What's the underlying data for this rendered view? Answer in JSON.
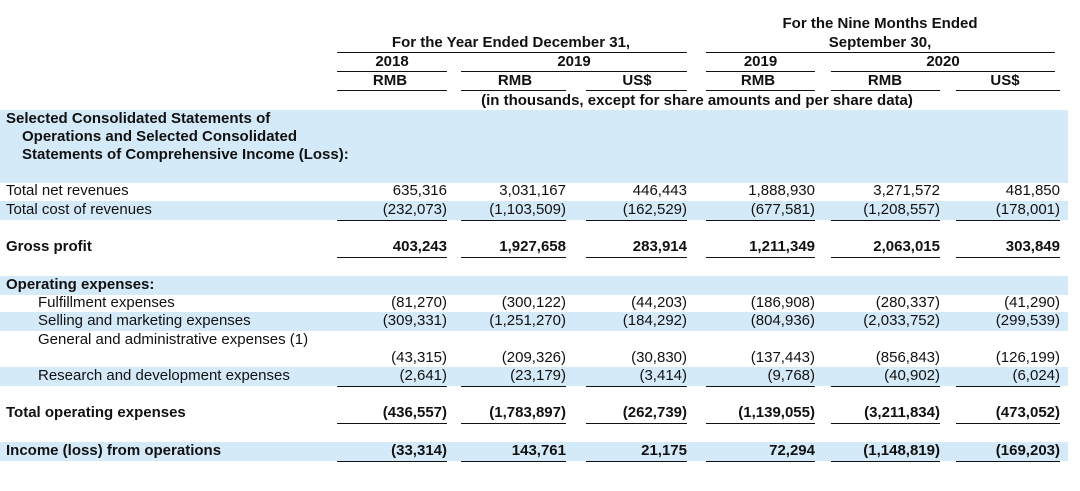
{
  "header": {
    "group1": "For the Year Ended December 31,",
    "group2_line1": "For the Nine Months Ended",
    "group2_line2": "September 30,",
    "years": [
      "2018",
      "2019",
      "2019",
      "2020"
    ],
    "currencies": [
      "RMB",
      "RMB",
      "US$",
      "RMB",
      "RMB",
      "US$"
    ],
    "note": "(in thousands, except for share amounts and per share data)"
  },
  "table": {
    "rows": [
      {
        "label": "Selected Consolidated Statements of Operations and Selected Consolidated Statements of Comprehensive Income (Loss):"
      },
      {
        "label": "Total net revenues",
        "values": [
          "635,316",
          "3,031,167",
          "446,443",
          "1,888,930",
          "3,271,572",
          "481,850"
        ]
      },
      {
        "label": "Total cost of revenues",
        "values": [
          "(232,073)",
          "(1,103,509)",
          "(162,529)",
          "(677,581)",
          "(1,208,557)",
          "(178,001)"
        ]
      },
      {
        "label": "Gross profit",
        "values": [
          "403,243",
          "1,927,658",
          "283,914",
          "1,211,349",
          "2,063,015",
          "303,849"
        ]
      },
      {
        "label": "Operating expenses:"
      },
      {
        "label": "Fulfillment expenses",
        "values": [
          "(81,270)",
          "(300,122)",
          "(44,203)",
          "(186,908)",
          "(280,337)",
          "(41,290)"
        ]
      },
      {
        "label": "Selling and marketing expenses",
        "values": [
          "(309,331)",
          "(1,251,270)",
          "(184,292)",
          "(804,936)",
          "(2,033,752)",
          "(299,539)"
        ]
      },
      {
        "label": "General and administrative expenses (1)",
        "values": [
          "(43,315)",
          "(209,326)",
          "(30,830)",
          "(137,443)",
          "(856,843)",
          "(126,199)"
        ]
      },
      {
        "label": "Research and development expenses",
        "values": [
          "(2,641)",
          "(23,179)",
          "(3,414)",
          "(9,768)",
          "(40,902)",
          "(6,024)"
        ]
      },
      {
        "label": "Total operating expenses",
        "values": [
          "(436,557)",
          "(1,783,897)",
          "(262,739)",
          "(1,139,055)",
          "(3,211,834)",
          "(473,052)"
        ]
      },
      {
        "label": "Income (loss) from operations",
        "values": [
          "(33,314)",
          "143,761",
          "21,175",
          "72,294",
          "(1,148,819)",
          "(169,203)"
        ]
      }
    ]
  }
}
